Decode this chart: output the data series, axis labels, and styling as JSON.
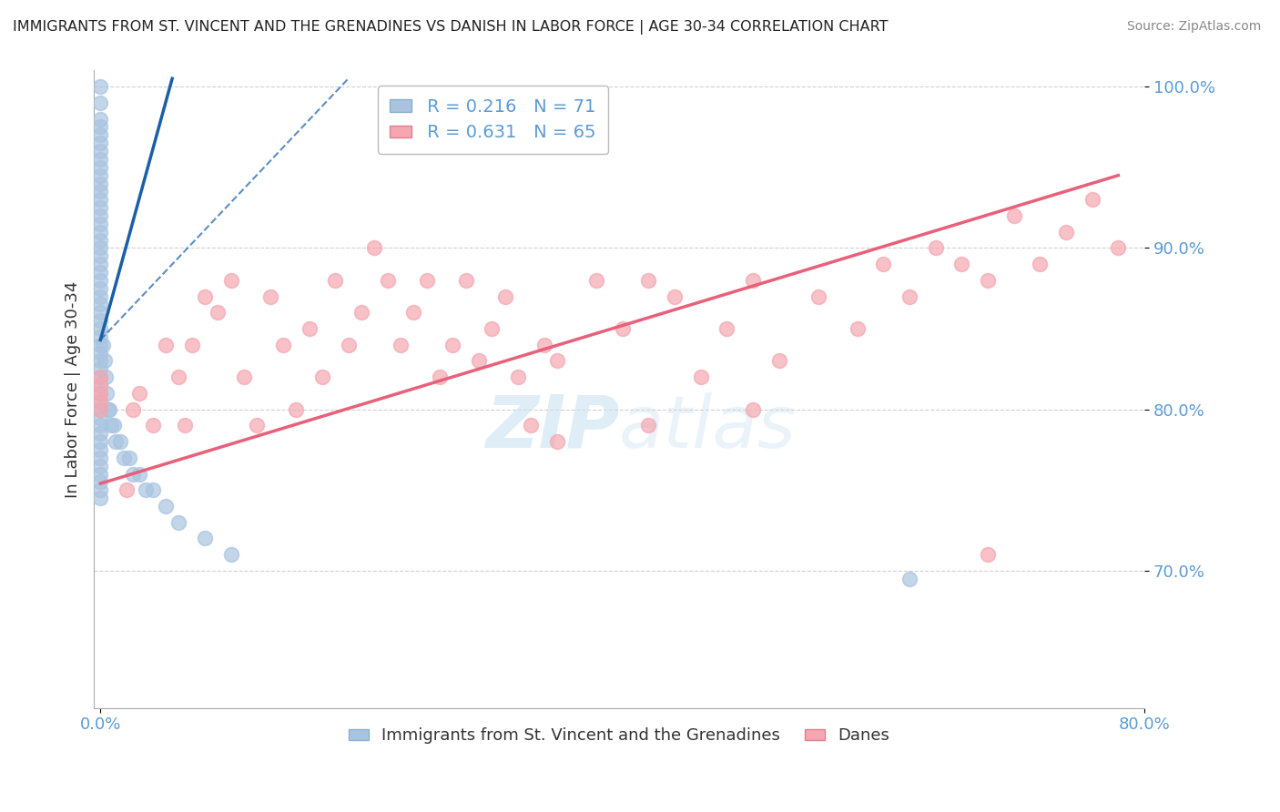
{
  "title": "IMMIGRANTS FROM ST. VINCENT AND THE GRENADINES VS DANISH IN LABOR FORCE | AGE 30-34 CORRELATION CHART",
  "source": "Source: ZipAtlas.com",
  "xlabel_blue": "Immigrants from St. Vincent and the Grenadines",
  "xlabel_pink": "Danes",
  "ylabel": "In Labor Force | Age 30-34",
  "R_blue": 0.216,
  "N_blue": 71,
  "R_pink": 0.631,
  "N_pink": 65,
  "blue_color": "#a8c4e0",
  "pink_color": "#f4a7b0",
  "blue_line_color": "#1a5fa8",
  "pink_line_color": "#e8607a",
  "xlim": [
    -0.005,
    0.8
  ],
  "ylim": [
    0.615,
    1.01
  ],
  "yticks": [
    0.7,
    0.8,
    0.9,
    1.0
  ],
  "watermark": "ZIPatlas",
  "background_color": "#ffffff",
  "blue_x": [
    0.0,
    0.0,
    0.0,
    0.0,
    0.0,
    0.0,
    0.0,
    0.0,
    0.0,
    0.0,
    0.0,
    0.0,
    0.0,
    0.0,
    0.0,
    0.0,
    0.0,
    0.0,
    0.0,
    0.0,
    0.0,
    0.0,
    0.0,
    0.0,
    0.0,
    0.0,
    0.0,
    0.0,
    0.0,
    0.0,
    0.0,
    0.0,
    0.0,
    0.0,
    0.0,
    0.0,
    0.0,
    0.0,
    0.0,
    0.0,
    0.0,
    0.0,
    0.0,
    0.0,
    0.0,
    0.0,
    0.0,
    0.0,
    0.0,
    0.0,
    0.002,
    0.003,
    0.004,
    0.005,
    0.006,
    0.007,
    0.008,
    0.01,
    0.012,
    0.015,
    0.018,
    0.022,
    0.025,
    0.03,
    0.035,
    0.04,
    0.05,
    0.06,
    0.08,
    0.1,
    0.62
  ],
  "blue_y": [
    1.0,
    0.99,
    0.98,
    0.975,
    0.97,
    0.965,
    0.96,
    0.955,
    0.95,
    0.945,
    0.94,
    0.935,
    0.93,
    0.925,
    0.92,
    0.915,
    0.91,
    0.905,
    0.9,
    0.895,
    0.89,
    0.885,
    0.88,
    0.875,
    0.87,
    0.865,
    0.86,
    0.855,
    0.85,
    0.845,
    0.84,
    0.835,
    0.83,
    0.825,
    0.82,
    0.815,
    0.81,
    0.805,
    0.8,
    0.795,
    0.79,
    0.785,
    0.78,
    0.775,
    0.77,
    0.765,
    0.76,
    0.755,
    0.75,
    0.745,
    0.84,
    0.83,
    0.82,
    0.81,
    0.8,
    0.8,
    0.79,
    0.79,
    0.78,
    0.78,
    0.77,
    0.77,
    0.76,
    0.76,
    0.75,
    0.75,
    0.74,
    0.73,
    0.72,
    0.71,
    0.695
  ],
  "pink_x": [
    0.0,
    0.0,
    0.0,
    0.0,
    0.0,
    0.02,
    0.025,
    0.03,
    0.04,
    0.05,
    0.06,
    0.065,
    0.07,
    0.08,
    0.09,
    0.1,
    0.11,
    0.12,
    0.13,
    0.14,
    0.15,
    0.16,
    0.17,
    0.18,
    0.19,
    0.2,
    0.21,
    0.22,
    0.23,
    0.24,
    0.25,
    0.26,
    0.27,
    0.28,
    0.29,
    0.3,
    0.31,
    0.32,
    0.33,
    0.34,
    0.35,
    0.38,
    0.4,
    0.42,
    0.44,
    0.46,
    0.48,
    0.5,
    0.52,
    0.55,
    0.58,
    0.6,
    0.62,
    0.64,
    0.66,
    0.68,
    0.7,
    0.72,
    0.74,
    0.76,
    0.78,
    0.5,
    0.42,
    0.35,
    0.68
  ],
  "pink_y": [
    0.82,
    0.815,
    0.81,
    0.805,
    0.8,
    0.75,
    0.8,
    0.81,
    0.79,
    0.84,
    0.82,
    0.79,
    0.84,
    0.87,
    0.86,
    0.88,
    0.82,
    0.79,
    0.87,
    0.84,
    0.8,
    0.85,
    0.82,
    0.88,
    0.84,
    0.86,
    0.9,
    0.88,
    0.84,
    0.86,
    0.88,
    0.82,
    0.84,
    0.88,
    0.83,
    0.85,
    0.87,
    0.82,
    0.79,
    0.84,
    0.83,
    0.88,
    0.85,
    0.88,
    0.87,
    0.82,
    0.85,
    0.88,
    0.83,
    0.87,
    0.85,
    0.89,
    0.87,
    0.9,
    0.89,
    0.88,
    0.92,
    0.89,
    0.91,
    0.93,
    0.9,
    0.8,
    0.79,
    0.78,
    0.71
  ],
  "blue_line_x0": 0.0,
  "blue_line_y0": 0.843,
  "blue_line_x1": 0.055,
  "blue_line_y1": 1.005,
  "blue_line_x0_dash": 0.0,
  "blue_line_y0_dash": 0.843,
  "blue_line_x1_dash": 0.19,
  "blue_line_y1_dash": 1.005,
  "pink_line_x0": 0.0,
  "pink_line_y0": 0.754,
  "pink_line_x1": 0.78,
  "pink_line_y1": 0.945
}
